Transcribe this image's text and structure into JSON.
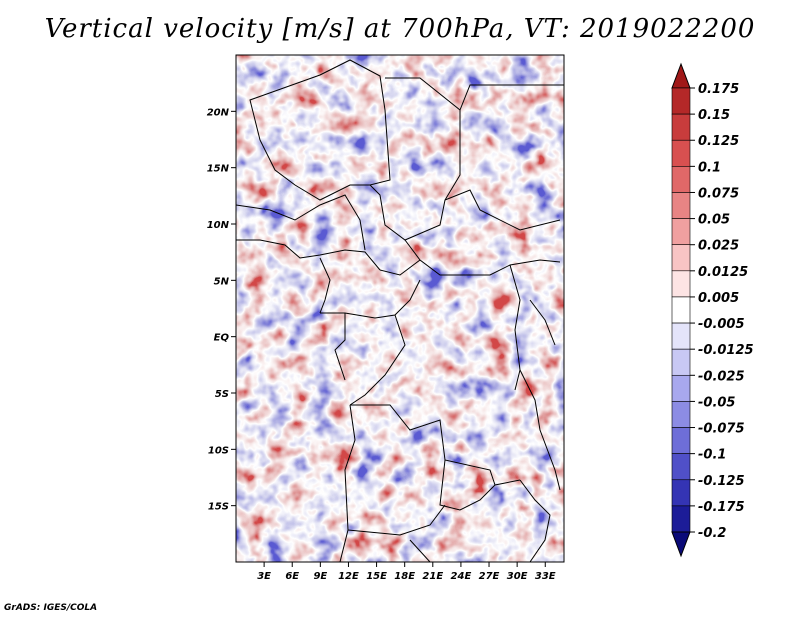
{
  "title": "Vertical velocity [m/s] at 700hPa, VT: 2019022200",
  "credit": "GrADS: IGES/COLA",
  "lat_labels": [
    "20N",
    "15N",
    "10N",
    "5N",
    "EQ",
    "5S",
    "10S",
    "15S"
  ],
  "lat_values": [
    20,
    15,
    10,
    5,
    0,
    -5,
    -10,
    -15
  ],
  "lon_labels": [
    "3E",
    "6E",
    "9E",
    "12E",
    "15E",
    "18E",
    "21E",
    "24E",
    "27E",
    "30E",
    "33E"
  ],
  "lon_values": [
    3,
    6,
    9,
    12,
    15,
    18,
    21,
    24,
    27,
    30,
    33
  ],
  "map_extent": {
    "lon_min": 0,
    "lon_max": 35,
    "lat_min": -20,
    "lat_max": 25
  },
  "colorbar": {
    "labels": [
      "0.175",
      "0.15",
      "0.125",
      "0.1",
      "0.075",
      "0.05",
      "0.025",
      "0.0125",
      "0.005",
      "-0.005",
      "-0.0125",
      "-0.025",
      "-0.05",
      "-0.075",
      "-0.1",
      "-0.125",
      "-0.175",
      "-0.2"
    ],
    "colors": [
      "#a01818",
      "#b42828",
      "#c83c3c",
      "#d85050",
      "#e06868",
      "#e88484",
      "#f0a0a0",
      "#f8c4c4",
      "#fde4e4",
      "#ffffff",
      "#e4e4fa",
      "#c8c8f4",
      "#a8a8ee",
      "#8c8ce4",
      "#6e6ed8",
      "#5050c8",
      "#3434b4",
      "#1c1c98",
      "#0a0a78"
    ]
  },
  "colors": {
    "positive": "#d24646",
    "negative": "#5a5ad2",
    "border": "#000000"
  }
}
